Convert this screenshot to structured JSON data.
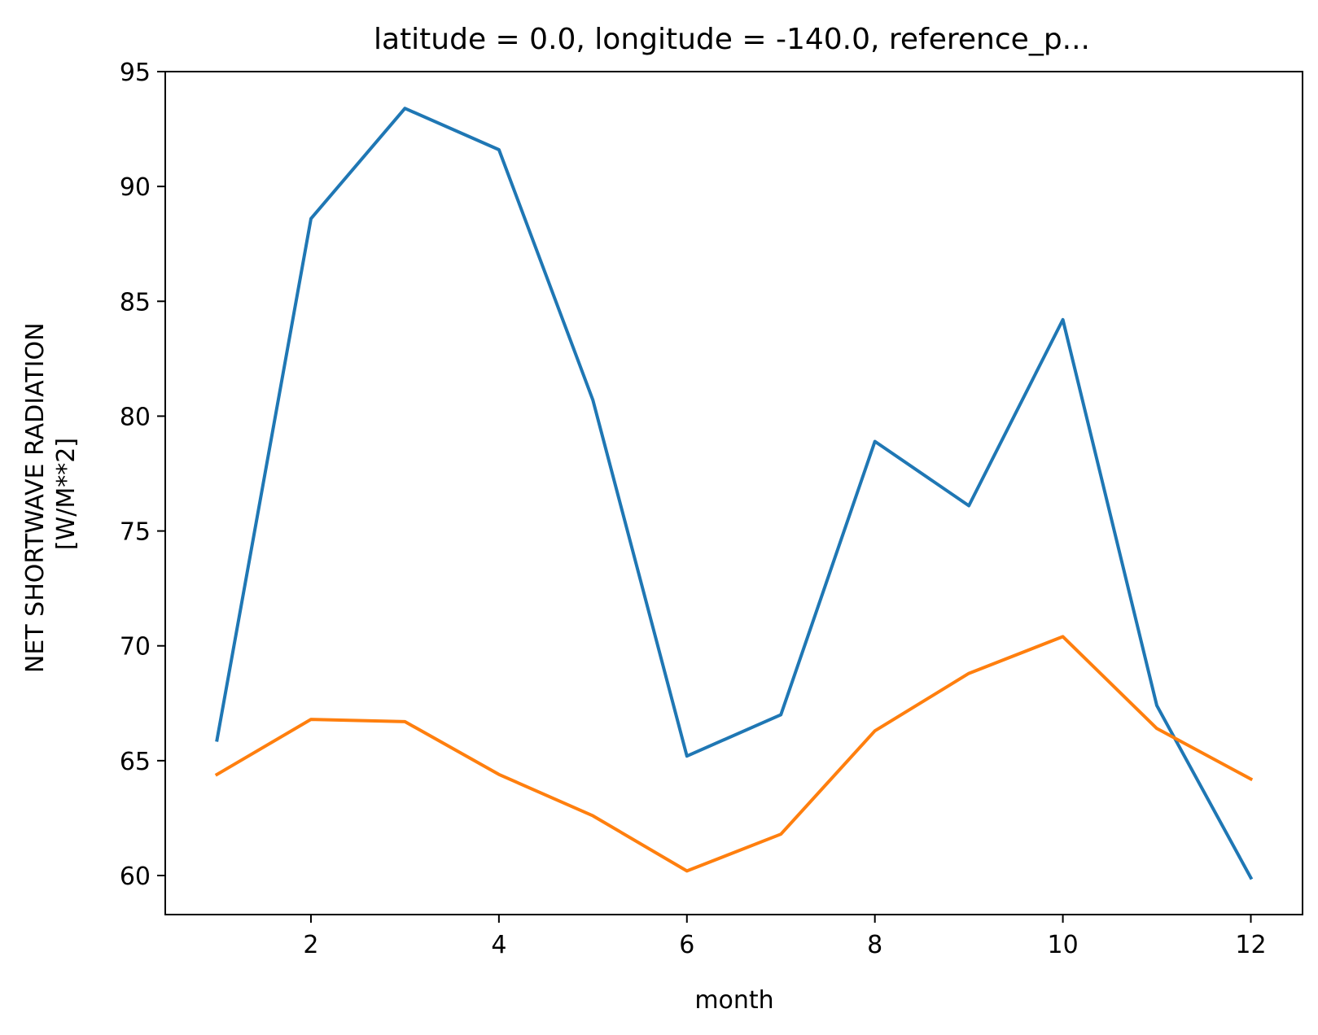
{
  "chart_data": {
    "type": "line",
    "title": "latitude = 0.0, longitude = -140.0, reference_p...",
    "xlabel": "month",
    "ylabel_lines": [
      "NET SHORTWAVE RADIATION",
      "[W/M**2]"
    ],
    "xlim": [
      0.45,
      12.55
    ],
    "ylim": [
      58.3,
      95.0
    ],
    "xticks": [
      2,
      4,
      6,
      8,
      10,
      12
    ],
    "yticks": [
      60,
      65,
      70,
      75,
      80,
      85,
      90,
      95
    ],
    "grid": false,
    "legend": "none",
    "x": [
      1,
      2,
      3,
      4,
      5,
      6,
      7,
      8,
      9,
      10,
      11,
      12
    ],
    "series": [
      {
        "color": "#1f77b4",
        "values": [
          65.9,
          88.6,
          93.4,
          91.6,
          80.7,
          65.2,
          67.0,
          78.9,
          76.1,
          84.2,
          67.4,
          59.9
        ]
      },
      {
        "color": "#ff7f0e",
        "values": [
          64.4,
          66.8,
          66.7,
          64.4,
          62.6,
          60.2,
          61.8,
          66.3,
          68.8,
          70.4,
          66.4,
          64.2
        ]
      }
    ]
  }
}
